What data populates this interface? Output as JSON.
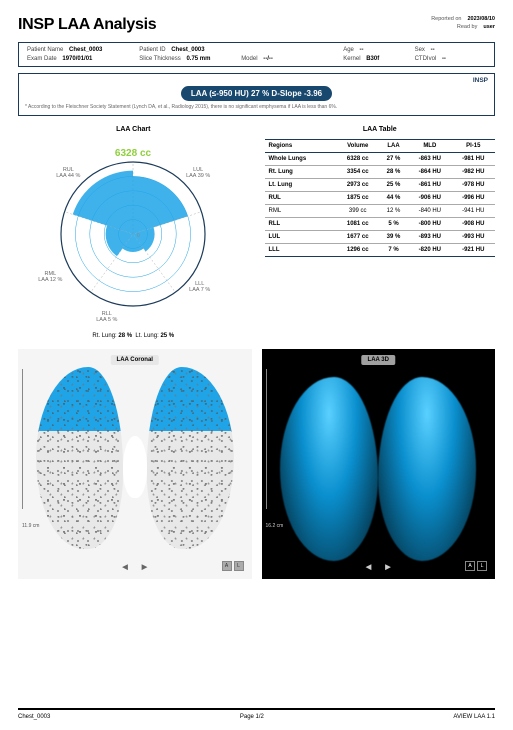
{
  "header": {
    "title": "INSP LAA Analysis",
    "reported_on_label": "Reported on",
    "reported_on": "2023/08/10",
    "read_by_label": "Read by",
    "read_by": "user"
  },
  "patient": {
    "name_label": "Patient Name",
    "name": "Chest_0003",
    "id_label": "Patient ID",
    "id": "Chest_0003",
    "age_label": "Age",
    "age": "--",
    "sex_label": "Sex",
    "sex": "--",
    "exam_date_label": "Exam Date",
    "exam_date": "1970/01/01",
    "slice_label": "Slice Thickness",
    "slice": "0.75 mm",
    "model_label": "Model",
    "model": "--/--",
    "kernel_label": "Kernel",
    "kernel": "B30f",
    "ctdi_label": "CTDIvol",
    "ctdi": "--"
  },
  "summary": {
    "insp_label": "INSP",
    "pill": "LAA (≤-950 HU) 27 %   D-Slope -3.96",
    "footnote": "* According to the Fleischner Society Statement (Lynch DA, et al., Radiology 2015), there is no significant emphysema if LAA is less than 6%."
  },
  "polar": {
    "title": "LAA Chart",
    "center_value": "6328 cc",
    "center_color": "#8fcf3c",
    "ring_color": "#1fa4e8",
    "fill_color": "#1fa4e8",
    "outline_color": "#1b3a5a",
    "labels": {
      "RUL": {
        "t": "RUL",
        "v": "LAA 44 %"
      },
      "LUL": {
        "t": "LUL",
        "v": "LAA 39 %"
      },
      "RML": {
        "t": "RML",
        "v": "LAA 12 %"
      },
      "LLL": {
        "t": "LLL",
        "v": "LAA 7 %"
      },
      "RLL": {
        "t": "RLL",
        "v": "LAA 5 %"
      }
    },
    "legend_rt_label": "Rt. Lung:",
    "legend_rt_val": "28 %",
    "legend_lt_label": "Lt. Lung:",
    "legend_lt_val": "25 %",
    "wedge_radii": {
      "RUL": 0.88,
      "LUL": 0.8,
      "RML": 0.38,
      "LLL": 0.3,
      "RLL": 0.25
    }
  },
  "table": {
    "title": "LAA Table",
    "columns": [
      "Regions",
      "Volume",
      "LAA",
      "MLD",
      "PI-15"
    ],
    "rows": [
      {
        "bold": true,
        "c": [
          "Whole Lungs",
          "6328 cc",
          "27 %",
          "-863 HU",
          "-981 HU"
        ]
      },
      {
        "bold": true,
        "c": [
          "Rt. Lung",
          "3354 cc",
          "28 %",
          "-864 HU",
          "-982 HU"
        ]
      },
      {
        "bold": true,
        "c": [
          "Lt. Lung",
          "2973 cc",
          "25 %",
          "-861 HU",
          "-978 HU"
        ]
      },
      {
        "bold": true,
        "c": [
          "RUL",
          "1875 cc",
          "44 %",
          "-906 HU",
          "-996 HU"
        ]
      },
      {
        "bold": false,
        "c": [
          "RML",
          "399 cc",
          "12 %",
          "-840 HU",
          "-941 HU"
        ]
      },
      {
        "bold": true,
        "c": [
          "RLL",
          "1081 cc",
          "5 %",
          "-800 HU",
          "-908 HU"
        ]
      },
      {
        "bold": true,
        "c": [
          "LUL",
          "1677 cc",
          "39 %",
          "-893 HU",
          "-993 HU"
        ]
      },
      {
        "bold": true,
        "c": [
          "LLL",
          "1296 cc",
          "7 %",
          "-820 HU",
          "-921 HU"
        ]
      }
    ]
  },
  "panels": {
    "coronal_label": "LAA Coronal",
    "coronal_scale": "11.9 cm",
    "three_d_label": "LAA 3D",
    "three_d_scale": "16.2 cm",
    "pager_prev": "◀",
    "pager_next": "▶",
    "ori_a": "A",
    "ori_l": "L"
  },
  "footer": {
    "left": "Chest_0003",
    "center": "Page 1/2",
    "right": "AVIEW LAA 1.1"
  }
}
